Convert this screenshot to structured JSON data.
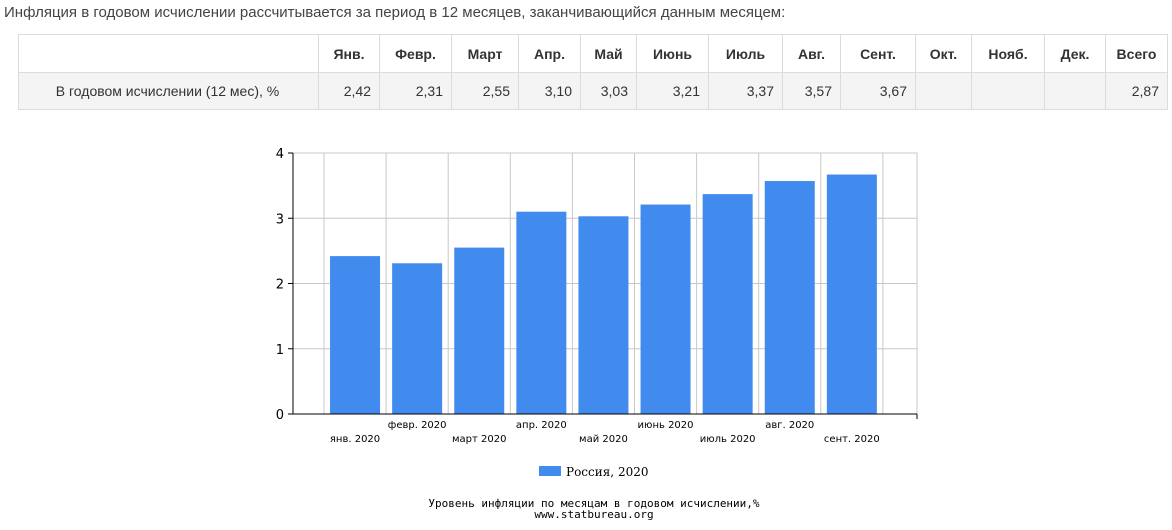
{
  "intro_text": "Инфляция в годовом исчислении рассчитывается за период в 12 месяцев, заканчивающийся данным месяцем:",
  "table": {
    "headers": [
      "",
      "Янв.",
      "Февр.",
      "Март",
      "Апр.",
      "Май",
      "Июнь",
      "Июль",
      "Авг.",
      "Сент.",
      "Окт.",
      "Нояб.",
      "Дек.",
      "Всего"
    ],
    "row_label": "В годовом исчислении (12 мес), %",
    "values": [
      "2,42",
      "2,31",
      "2,55",
      "3,10",
      "3,03",
      "3,21",
      "3,37",
      "3,57",
      "3,67",
      "",
      "",
      "",
      "2,87"
    ]
  },
  "chart_data": {
    "type": "bar",
    "categories": [
      "янв. 2020",
      "февр. 2020",
      "март 2020",
      "апр. 2020",
      "май 2020",
      "июнь 2020",
      "июль 2020",
      "авг. 2020",
      "сент. 2020"
    ],
    "series": [
      {
        "name": "Россия, 2020",
        "values": [
          2.42,
          2.31,
          2.55,
          3.1,
          3.03,
          3.21,
          3.37,
          3.57,
          3.67
        ],
        "color": "#428bee"
      }
    ],
    "ylim": [
      0,
      4
    ],
    "yticks": [
      0,
      1,
      2,
      3,
      4
    ],
    "grid": true,
    "legend_position": "bottom",
    "caption": "Уровень инфляции по месяцам в годовом исчислении,%",
    "source": "www.statbureau.org"
  }
}
